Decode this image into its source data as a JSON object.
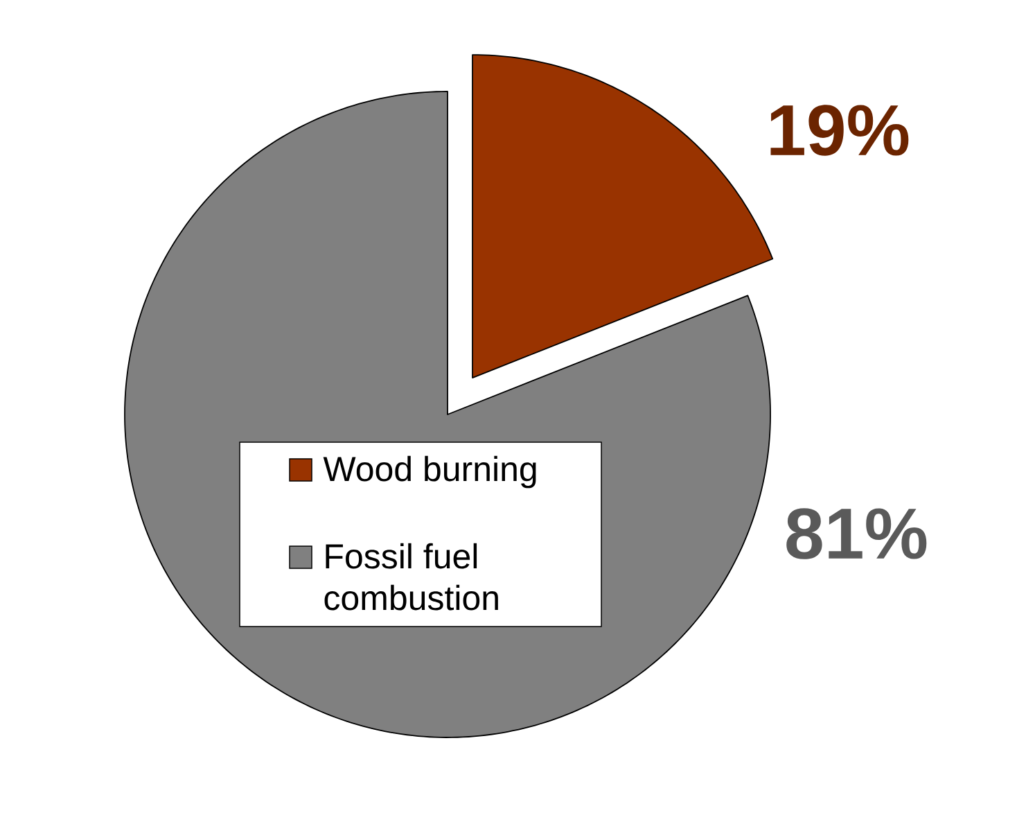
{
  "chart_data": {
    "type": "pie",
    "categories": [
      "Wood burning",
      "Fossil fuel combustion"
    ],
    "values": [
      19,
      81
    ],
    "colors": [
      "#993300",
      "#808080"
    ],
    "value_labels": [
      "19%",
      "81%"
    ],
    "legend": "bottom left"
  }
}
